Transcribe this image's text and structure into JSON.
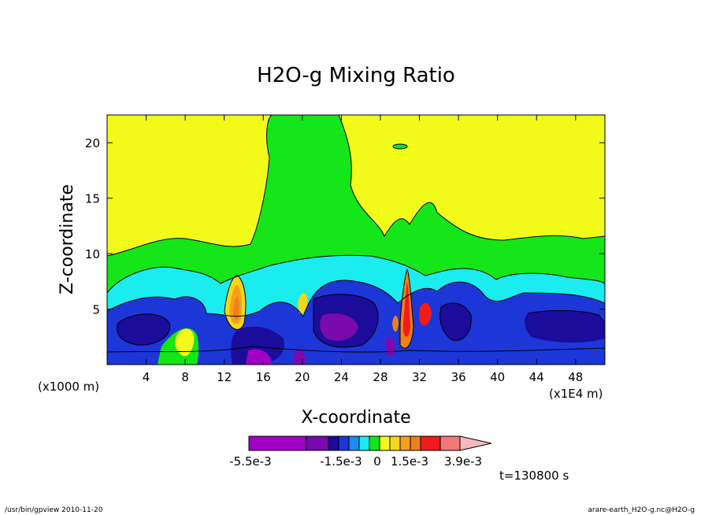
{
  "chart_data": {
    "type": "heatmap",
    "title": "H2O-g Mixing Ratio",
    "xlabel": "X-coordinate",
    "ylabel": "Z-coordinate",
    "x_unit_left": "(x1000 m)",
    "x_unit_right": "(x1E4 m)",
    "xlim": [
      0,
      51
    ],
    "ylim": [
      0,
      22.5
    ],
    "x_ticks": [
      4,
      8,
      12,
      16,
      20,
      24,
      28,
      32,
      36,
      40,
      44,
      48
    ],
    "y_ticks": [
      5,
      10,
      15,
      20
    ],
    "colorbar": {
      "colors": [
        "#a100c6",
        "#7a0aae",
        "#1c0c9c",
        "#1d36d8",
        "#1a8cf2",
        "#1aecef",
        "#14e61a",
        "#f2fa1a",
        "#f6d61a",
        "#f4a11a",
        "#f2801a",
        "#f21a1a",
        "#f27878",
        "#f7b8b8"
      ],
      "labels": [
        "-5.5e-3",
        "-1.5e-3",
        "0",
        "1.5e-3",
        "3.9e-3"
      ]
    },
    "time_label": "t=130800 s"
  },
  "footer": {
    "left": "/usr/bin/gpview   2010-11-20",
    "right": "arare-earth_H2O-g.nc@H2O-g"
  }
}
